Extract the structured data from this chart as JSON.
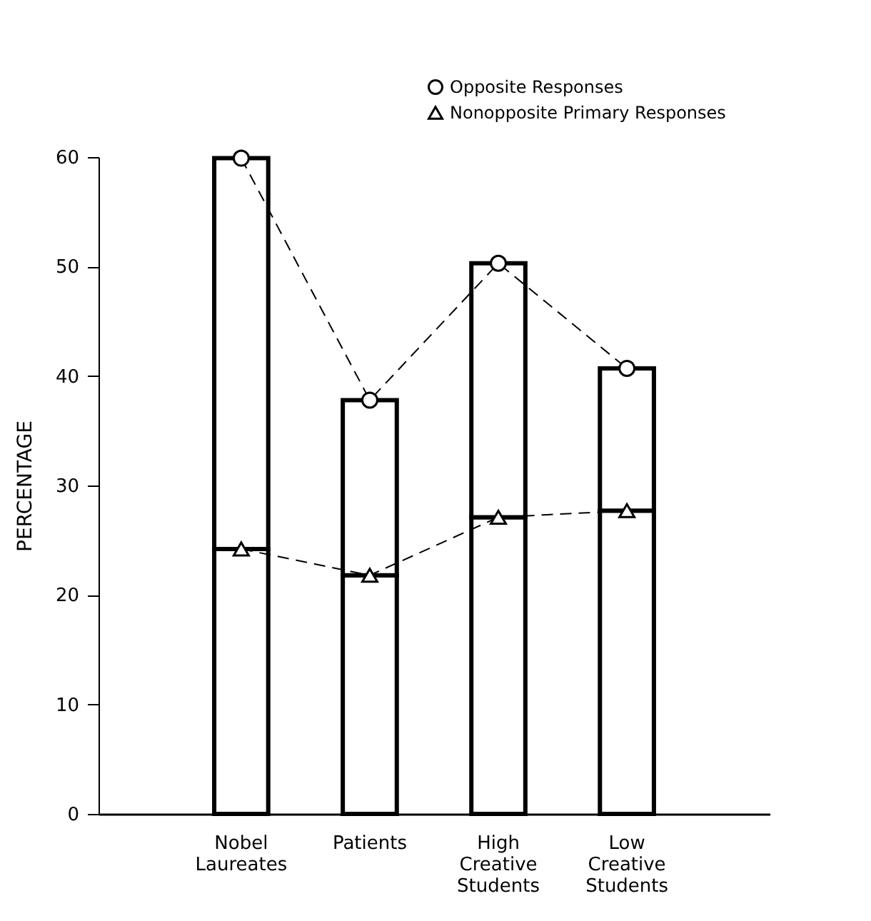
{
  "chart_data": {
    "type": "bar",
    "stacked": true,
    "ylabel": "PERCENTAGE",
    "categories": [
      "Nobel Laureates",
      "Patients",
      "High Creative Students",
      "Low Creative Students"
    ],
    "series": [
      {
        "color": "#ffffff",
        "values": [
          24.2,
          21.8,
          27.1,
          27.7
        ]
      },
      {
        "color": "#ffffff",
        "values": [
          35.7,
          16.0,
          23.2,
          13.0
        ]
      },
      {
        "name": "Opposite Responses",
        "type": "line",
        "color": "#000000",
        "marker": "circle",
        "line_style": "dashed",
        "values": [
          59.9,
          37.8,
          50.3,
          40.7
        ]
      },
      {
        "name": "Nonopposite Primary Responses",
        "type": "line",
        "color": "#000000",
        "marker": "triangle",
        "line_style": "dashed",
        "values": [
          24.2,
          21.8,
          27.1,
          27.7
        ]
      }
    ],
    "ylim": [
      0,
      60
    ],
    "yticks": [
      0,
      10,
      20,
      30,
      40,
      50,
      60
    ],
    "grid": false,
    "legend": "top right"
  }
}
